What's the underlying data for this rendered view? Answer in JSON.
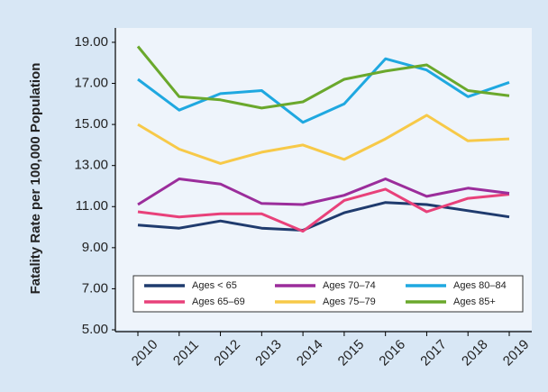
{
  "chart_data": {
    "type": "line",
    "y_label": "Fatality Rate per 100,000 Population",
    "categories": [
      "2010",
      "2011",
      "2012",
      "2013",
      "2014",
      "2015",
      "2016",
      "2017",
      "2018",
      "2019"
    ],
    "series": [
      {
        "name": "Ages < 65",
        "color": "#1f3b6e",
        "values": [
          10.1,
          9.95,
          10.3,
          9.95,
          9.85,
          10.7,
          11.2,
          11.1,
          10.8,
          10.5
        ]
      },
      {
        "name": "Ages 65–69",
        "color": "#e8417a",
        "values": [
          10.75,
          10.5,
          10.65,
          10.65,
          9.8,
          11.3,
          11.85,
          10.75,
          11.4,
          11.6
        ]
      },
      {
        "name": "Ages 70–74",
        "color": "#9b2d9b",
        "values": [
          11.1,
          12.35,
          12.1,
          11.15,
          11.1,
          11.55,
          12.35,
          11.5,
          11.9,
          11.65
        ]
      },
      {
        "name": "Ages 75–79",
        "color": "#f7c948",
        "values": [
          15.0,
          13.8,
          13.1,
          13.65,
          14.0,
          13.3,
          14.3,
          15.45,
          14.2,
          14.3
        ]
      },
      {
        "name": "Ages 80–84",
        "color": "#1fa8e0",
        "values": [
          17.2,
          15.7,
          16.5,
          16.65,
          15.1,
          16.0,
          18.2,
          17.65,
          16.35,
          17.05
        ]
      },
      {
        "name": "Ages 85+",
        "color": "#6aa82c",
        "values": [
          18.8,
          16.35,
          16.2,
          15.8,
          16.1,
          17.2,
          17.6,
          17.9,
          16.65,
          16.4
        ]
      }
    ],
    "ylim": [
      5,
      19.7
    ],
    "yticks": [
      {
        "value": 5,
        "label": "5.00"
      },
      {
        "value": 7,
        "label": "7.00"
      },
      {
        "value": 9,
        "label": "9.00"
      },
      {
        "value": 11,
        "label": "11.00"
      },
      {
        "value": 13,
        "label": "13.00"
      },
      {
        "value": 15,
        "label": "15.00"
      },
      {
        "value": 17,
        "label": "17.00"
      },
      {
        "value": 19,
        "label": "19.00"
      }
    ],
    "grid": false,
    "legend": "bottom"
  }
}
